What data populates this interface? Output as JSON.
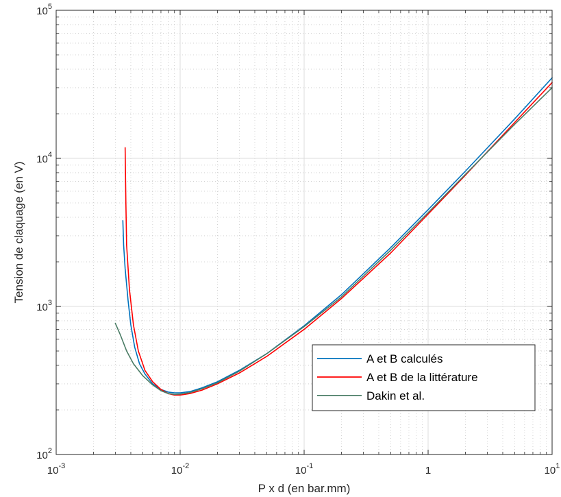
{
  "chart_data": {
    "type": "line",
    "title": "",
    "xlabel": "P x d (en bar.mm)",
    "ylabel": "Tension de claquage (en V)",
    "xscale": "log",
    "yscale": "log",
    "xlim": [
      0.001,
      10
    ],
    "ylim": [
      100,
      100000
    ],
    "grid": true,
    "minor_grid": true,
    "legend_position": "bottom-right",
    "x_ticks": [
      {
        "base": "10",
        "exp": "-3",
        "value": 0.001
      },
      {
        "base": "10",
        "exp": "-2",
        "value": 0.01
      },
      {
        "base": "10",
        "exp": "-1",
        "value": 0.1
      },
      {
        "base": "1",
        "exp": "",
        "value": 1
      },
      {
        "base": "10",
        "exp": "1",
        "value": 10
      }
    ],
    "y_ticks": [
      {
        "base": "10",
        "exp": "2",
        "value": 100
      },
      {
        "base": "10",
        "exp": "3",
        "value": 1000
      },
      {
        "base": "10",
        "exp": "4",
        "value": 10000
      },
      {
        "base": "10",
        "exp": "5",
        "value": 100000
      }
    ],
    "series": [
      {
        "name": "A et B calculés",
        "color": "#0072bd",
        "points": [
          [
            0.00345,
            3800
          ],
          [
            0.0035,
            2600
          ],
          [
            0.0036,
            1800
          ],
          [
            0.0038,
            1100
          ],
          [
            0.004,
            750
          ],
          [
            0.0043,
            530
          ],
          [
            0.0047,
            410
          ],
          [
            0.0052,
            350
          ],
          [
            0.006,
            300
          ],
          [
            0.007,
            275
          ],
          [
            0.008,
            264
          ],
          [
            0.009,
            261
          ],
          [
            0.01,
            261
          ],
          [
            0.012,
            266
          ],
          [
            0.015,
            282
          ],
          [
            0.02,
            310
          ],
          [
            0.03,
            370
          ],
          [
            0.05,
            480
          ],
          [
            0.1,
            740
          ],
          [
            0.2,
            1200
          ],
          [
            0.5,
            2500
          ],
          [
            1,
            4500
          ],
          [
            2,
            8200
          ],
          [
            5,
            18500
          ],
          [
            10,
            35000
          ]
        ]
      },
      {
        "name": "A et B de la littérature",
        "color": "#ff0000",
        "points": [
          [
            0.0036,
            11800
          ],
          [
            0.00365,
            5000
          ],
          [
            0.0037,
            2600
          ],
          [
            0.0039,
            1300
          ],
          [
            0.0042,
            750
          ],
          [
            0.0046,
            500
          ],
          [
            0.0052,
            370
          ],
          [
            0.006,
            310
          ],
          [
            0.007,
            275
          ],
          [
            0.008,
            258
          ],
          [
            0.009,
            252
          ],
          [
            0.01,
            252
          ],
          [
            0.012,
            258
          ],
          [
            0.015,
            272
          ],
          [
            0.02,
            300
          ],
          [
            0.03,
            355
          ],
          [
            0.05,
            460
          ],
          [
            0.1,
            700
          ],
          [
            0.2,
            1130
          ],
          [
            0.5,
            2300
          ],
          [
            1,
            4200
          ],
          [
            2,
            7700
          ],
          [
            5,
            17500
          ],
          [
            10,
            32500
          ]
        ]
      },
      {
        "name": "Dakin et al.",
        "color": "#4a7c65",
        "points": [
          [
            0.003,
            770
          ],
          [
            0.0033,
            640
          ],
          [
            0.0037,
            500
          ],
          [
            0.0042,
            410
          ],
          [
            0.005,
            340
          ],
          [
            0.006,
            295
          ],
          [
            0.007,
            270
          ],
          [
            0.008,
            258
          ],
          [
            0.009,
            255
          ],
          [
            0.01,
            256
          ],
          [
            0.012,
            262
          ],
          [
            0.015,
            278
          ],
          [
            0.02,
            305
          ],
          [
            0.03,
            365
          ],
          [
            0.05,
            480
          ],
          [
            0.1,
            730
          ],
          [
            0.2,
            1160
          ],
          [
            0.5,
            2400
          ],
          [
            1,
            4300
          ],
          [
            2,
            7800
          ],
          [
            5,
            17000
          ],
          [
            10,
            30000
          ]
        ]
      }
    ]
  }
}
